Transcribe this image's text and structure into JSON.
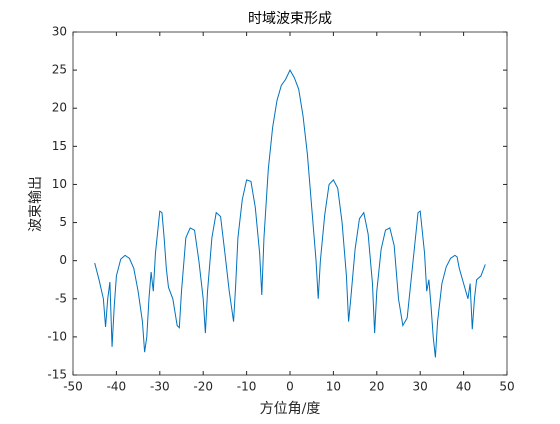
{
  "chart_data": {
    "type": "line",
    "title": "时域波束形成",
    "xlabel": "方位角/度",
    "ylabel": "波束输出",
    "xlim": [
      -50,
      50
    ],
    "xticks": [
      -50,
      -40,
      -30,
      -20,
      -10,
      0,
      10,
      20,
      30,
      40,
      50
    ],
    "ylim": [
      -15,
      30
    ],
    "yticks": [
      -15,
      -10,
      -5,
      0,
      5,
      10,
      15,
      20,
      25,
      30
    ],
    "grid": false,
    "series": [
      {
        "color": "#0072bd",
        "x": [
          -45,
          -44,
          -43,
          -42.5,
          -42,
          -41.5,
          -41,
          -40.5,
          -40,
          -39,
          -38,
          -37,
          -36,
          -35,
          -34,
          -33.5,
          -33,
          -32.5,
          -32,
          -31.5,
          -31,
          -30,
          -29.5,
          -29,
          -28.5,
          -28,
          -27,
          -26,
          -25.5,
          -25,
          -24,
          -23,
          -22,
          -21,
          -20,
          -19.5,
          -19,
          -18,
          -17,
          -16,
          -15,
          -14,
          -13,
          -12.5,
          -12,
          -11,
          -10,
          -9,
          -8,
          -7,
          -6.5,
          -6,
          -5,
          -4,
          -3,
          -2,
          -1,
          0,
          1,
          2,
          3,
          4,
          5,
          6,
          6.5,
          7,
          8,
          9,
          10,
          11,
          12,
          13,
          13.5,
          14,
          15,
          16,
          17,
          18,
          19,
          19.5,
          20,
          21,
          22,
          23,
          24,
          25,
          26,
          27,
          28,
          29,
          29.5,
          30,
          31,
          31.5,
          32,
          32.5,
          33,
          33.5,
          34,
          35,
          36,
          37,
          38,
          38.5,
          39,
          40,
          41,
          41.5,
          42,
          42.5,
          43,
          44,
          45
        ],
        "values": [
          -0.3,
          -2.5,
          -5,
          -8.7,
          -5,
          -2.8,
          -11.3,
          -6,
          -2,
          0.2,
          0.7,
          0.3,
          -1,
          -4,
          -8,
          -12,
          -10,
          -5,
          -1.5,
          -4,
          1,
          6.5,
          6.3,
          3,
          -1,
          -3.5,
          -5,
          -8.5,
          -8.8,
          -4,
          3,
          4.3,
          4,
          0,
          -5,
          -9.5,
          -4,
          3,
          6.3,
          5.8,
          1,
          -4,
          -8,
          -3,
          3,
          8,
          10.6,
          10.4,
          7,
          1,
          -4.5,
          3,
          12,
          17.5,
          21,
          23,
          23.8,
          25,
          24,
          22.5,
          19,
          14,
          7,
          0,
          -5,
          0,
          6,
          10,
          10.6,
          9.5,
          5,
          -2,
          -8,
          -5,
          1.5,
          5.5,
          6.3,
          3.5,
          -3,
          -9.5,
          -4,
          1.5,
          4,
          4.3,
          2,
          -5,
          -8.5,
          -7.5,
          -2,
          3.5,
          6.3,
          6.5,
          1,
          -4,
          -2.5,
          -6,
          -10,
          -12.7,
          -8,
          -3,
          -0.8,
          0.3,
          0.7,
          0.5,
          -1,
          -3,
          -5,
          -3,
          -9,
          -5,
          -2.5,
          -2,
          -0.5
        ]
      }
    ]
  }
}
